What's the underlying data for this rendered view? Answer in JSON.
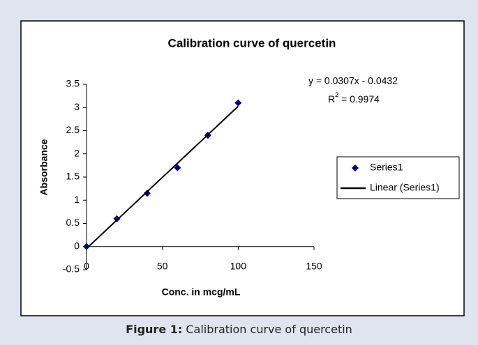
{
  "chart_data": {
    "type": "scatter",
    "title": "Calibration curve of quercetin",
    "x_label": "Conc. in mcg/mL",
    "y_label": "Absorbance",
    "xlim": [
      0,
      150
    ],
    "xticks": [
      0,
      50,
      100,
      150
    ],
    "ylim": [
      -0.5,
      3.5
    ],
    "yticks": [
      -0.5,
      0,
      0.5,
      1,
      1.5,
      2,
      2.5,
      3,
      3.5
    ],
    "series": [
      {
        "name": "Series1",
        "kind": "points",
        "color": "#000080",
        "x": [
          0,
          20,
          40,
          60,
          80,
          100
        ],
        "values": [
          0,
          0.6,
          1.15,
          1.7,
          2.4,
          3.1
        ]
      },
      {
        "name": "Linear (Series1)",
        "kind": "line",
        "color": "#000000",
        "x": [
          0,
          100
        ],
        "values": [
          -0.0432,
          3.0268
        ]
      }
    ],
    "equation": "y = 0.0307x - 0.0432",
    "r_squared": {
      "base": "R",
      "sup": "2",
      "rest": " = 0.9974"
    },
    "legend": "right"
  },
  "caption": {
    "label": "Figure 1:",
    "text": "Calibration curve of quercetin"
  }
}
